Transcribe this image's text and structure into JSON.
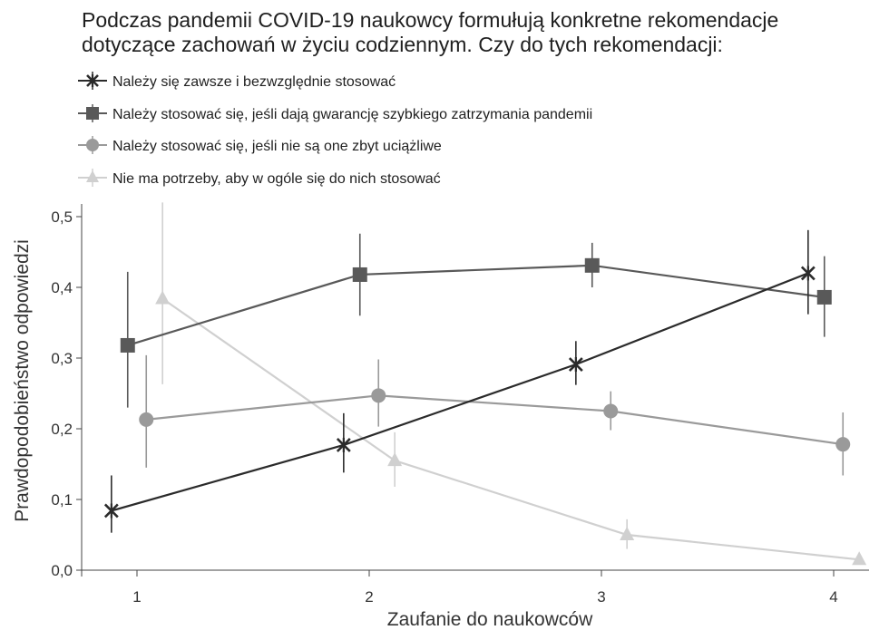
{
  "chart_data": {
    "type": "line",
    "title": [
      "Podczas pandemii COVID-19 naukowcy formułują konkretne rekomendacje",
      "dotyczące zachowań w życiu codziennym. Czy do tych rekomendacji:"
    ],
    "xlabel": "Zaufanie do naukowców",
    "ylabel": "Prawdopodobieństwo odpowiedzi",
    "x_ticks": [
      "1",
      "2",
      "3",
      "4"
    ],
    "y_ticks": [
      "0,0",
      "0,1",
      "0,2",
      "0,3",
      "0,4",
      "0,5"
    ],
    "xlim": [
      0.75,
      4.2
    ],
    "ylim": [
      0,
      0.52
    ],
    "grid": false,
    "legend_position": "top",
    "series": [
      {
        "name": "Należy się zawsze i bezwzględnie stosować",
        "marker": "x-star",
        "color": "#2b2b2b",
        "x": [
          0.89,
          1.89,
          2.89,
          3.89
        ],
        "y": [
          0.084,
          0.177,
          0.291,
          0.42
        ],
        "ci_low": [
          0.053,
          0.138,
          0.262,
          0.362
        ],
        "ci_high": [
          0.134,
          0.222,
          0.324,
          0.481
        ]
      },
      {
        "name": "Należy stosować się, jeśli dają gwarancję szybkiego zatrzymania pandemii",
        "marker": "square",
        "color": "#595959",
        "x": [
          0.96,
          1.96,
          2.96,
          3.96
        ],
        "y": [
          0.318,
          0.418,
          0.431,
          0.386
        ],
        "ci_low": [
          0.23,
          0.36,
          0.4,
          0.33
        ],
        "ci_high": [
          0.422,
          0.476,
          0.463,
          0.444
        ]
      },
      {
        "name": "Należy stosować się, jeśli nie są one zbyt uciążliwe",
        "marker": "circle",
        "color": "#9a9a9a",
        "x": [
          1.04,
          2.04,
          3.04,
          4.04
        ],
        "y": [
          0.213,
          0.247,
          0.225,
          0.178
        ],
        "ci_low": [
          0.145,
          0.203,
          0.198,
          0.134
        ],
        "ci_high": [
          0.304,
          0.298,
          0.253,
          0.223
        ]
      },
      {
        "name": "Nie ma potrzeby, aby w ogóle się do nich stosować",
        "marker": "triangle",
        "color": "#d0d0d0",
        "x": [
          1.11,
          2.11,
          3.11,
          4.11
        ],
        "y": [
          0.384,
          0.155,
          0.05,
          0.015
        ],
        "ci_low": [
          0.263,
          0.118,
          0.03,
          0.008
        ],
        "ci_high": [
          0.52,
          0.195,
          0.072,
          0.022
        ]
      }
    ]
  }
}
